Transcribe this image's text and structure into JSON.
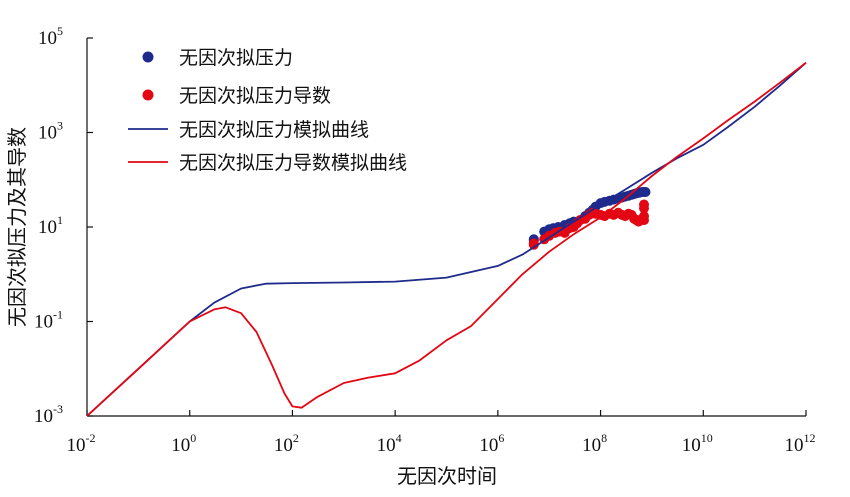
{
  "chart_data": {
    "type": "scatter",
    "xscale": "log",
    "yscale": "log",
    "xlim": [
      0.01,
      1000000000000
    ],
    "ylim": [
      0.001,
      100000
    ],
    "xlabel": "无因次时间",
    "ylabel": "无因次拟压力及其导数",
    "x_tick_exponents": [
      "-2",
      "0",
      "2",
      "4",
      "6",
      "8",
      "10",
      "12"
    ],
    "y_tick_exponents": [
      "-3",
      "-1",
      "1",
      "3",
      "5"
    ],
    "tick_base": "10",
    "legend_position": "top-left",
    "series": [
      {
        "name": "无因次拟压力",
        "kind": "points",
        "color": "#1e2a8c",
        "x": [
          5000000,
          5000000,
          8000000,
          10000000,
          12000000,
          15000000,
          20000000,
          25000000,
          30000000,
          40000000,
          50000000,
          60000000,
          70000000,
          80000000,
          100000000,
          120000000,
          150000000,
          180000000,
          220000000,
          260000000,
          300000000,
          350000000,
          400000000,
          450000000,
          500000000,
          550000000,
          600000000,
          650000000,
          700000000,
          750000000
        ],
        "y": [
          5.5,
          5.2,
          8,
          9,
          9.5,
          10,
          11,
          12,
          13,
          14,
          17,
          20,
          23,
          27,
          32,
          34,
          36,
          38,
          40,
          42,
          44,
          46,
          48,
          50,
          52,
          53,
          54,
          55,
          55,
          55
        ]
      },
      {
        "name": "无因次拟压力导数",
        "kind": "points",
        "color": "#e30613",
        "x": [
          5000000,
          5000000,
          8000000,
          10000000,
          13000000,
          16000000,
          20000000,
          25000000,
          30000000,
          35000000,
          40000000,
          50000000,
          60000000,
          70000000,
          80000000,
          100000000,
          120000000,
          150000000,
          180000000,
          220000000,
          260000000,
          300000000,
          350000000,
          400000000,
          450000000,
          500000000,
          550000000,
          600000000,
          650000000,
          700000000,
          700000000,
          700000000,
          700000000
        ],
        "y": [
          4.5,
          4.2,
          5.5,
          6.5,
          7.5,
          8,
          7.5,
          9.5,
          10,
          12,
          14,
          15,
          18,
          20,
          19,
          18,
          17,
          19,
          18,
          20,
          18,
          17,
          19,
          18,
          15,
          14,
          13,
          14,
          15,
          14,
          17,
          25,
          30
        ]
      },
      {
        "name": "无因次拟压力模拟曲线",
        "kind": "line",
        "color": "#1e2a8c",
        "x": [
          0.01,
          0.1,
          1,
          3,
          10,
          30,
          100,
          1000,
          10000,
          100000,
          1000000,
          3000000,
          10000000,
          30000000,
          100000000,
          300000000,
          1000000000,
          3000000000,
          10000000000,
          30000000000,
          100000000000,
          300000000000,
          1000000000000
        ],
        "y": [
          0.001,
          0.01,
          0.1,
          0.25,
          0.5,
          0.63,
          0.65,
          0.67,
          0.7,
          0.85,
          1.5,
          2.6,
          6,
          13,
          30,
          62,
          140,
          280,
          550,
          1300,
          3500,
          9500,
          30000
        ]
      },
      {
        "name": "无因次拟压力导数模拟曲线",
        "kind": "line",
        "color": "#e30613",
        "x": [
          0.01,
          0.1,
          1,
          3,
          5,
          10,
          20,
          40,
          70,
          100,
          150,
          300,
          1000,
          3000,
          10000,
          30000,
          100000,
          300000,
          1000000,
          3000000,
          10000000,
          30000000,
          100000000,
          300000000,
          1000000000,
          3000000000,
          10000000000,
          30000000000,
          100000000000,
          300000000000,
          1000000000000
        ],
        "y": [
          0.001,
          0.01,
          0.1,
          0.18,
          0.2,
          0.15,
          0.06,
          0.012,
          0.003,
          0.0016,
          0.0015,
          0.0025,
          0.005,
          0.0065,
          0.008,
          0.015,
          0.04,
          0.08,
          0.3,
          1,
          3,
          7,
          16,
          40,
          120,
          300,
          750,
          1800,
          4500,
          11000,
          30000
        ]
      }
    ]
  }
}
